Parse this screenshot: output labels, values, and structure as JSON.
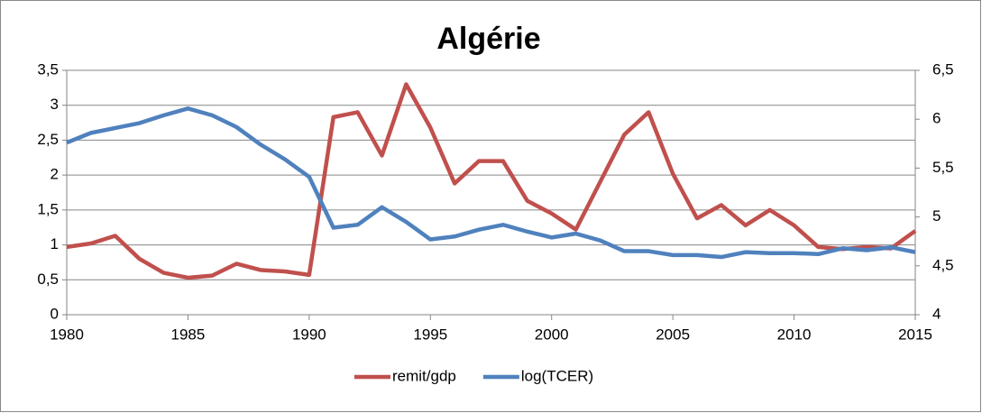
{
  "chart_data": {
    "type": "line",
    "title": "Algérie",
    "x": [
      1980,
      1981,
      1982,
      1983,
      1984,
      1985,
      1986,
      1987,
      1988,
      1989,
      1990,
      1991,
      1992,
      1993,
      1994,
      1995,
      1996,
      1997,
      1998,
      1999,
      2000,
      2001,
      2002,
      2003,
      2004,
      2005,
      2006,
      2007,
      2008,
      2009,
      2010,
      2011,
      2012,
      2013,
      2014,
      2015
    ],
    "series": [
      {
        "name": "remit/gdp",
        "color": "#c0504d",
        "values": [
          0.97,
          1.02,
          1.13,
          0.8,
          0.6,
          0.53,
          0.56,
          0.73,
          0.64,
          0.62,
          0.57,
          2.83,
          2.9,
          2.28,
          3.3,
          2.68,
          1.88,
          2.2,
          2.2,
          1.63,
          1.45,
          1.22,
          1.9,
          2.58,
          2.9,
          2.02,
          1.38,
          1.57,
          1.28,
          1.5,
          1.28,
          0.97,
          0.94,
          0.97,
          0.95,
          1.2
        ]
      },
      {
        "name": "log(TCER)",
        "color": "#4f81bd",
        "axis": "y2",
        "values": [
          5.76,
          5.86,
          5.91,
          5.96,
          6.04,
          6.11,
          6.04,
          5.92,
          5.74,
          5.59,
          5.41,
          4.89,
          4.92,
          5.1,
          4.95,
          4.77,
          4.8,
          4.87,
          4.92,
          4.85,
          4.79,
          4.83,
          4.76,
          4.65,
          4.65,
          4.61,
          4.61,
          4.59,
          4.64,
          4.63,
          4.63,
          4.62,
          4.68,
          4.66,
          4.69,
          4.64
        ]
      }
    ],
    "xlim": [
      1980,
      2015
    ],
    "xticks": [
      1980,
      1985,
      1990,
      1995,
      2000,
      2005,
      2010,
      2015
    ],
    "ylim": [
      0,
      3.5
    ],
    "yticks": [
      0,
      {
        "value": 0.5,
        "label": "0,5"
      },
      1,
      {
        "value": 1.5,
        "label": "1,5"
      },
      2,
      {
        "value": 2.5,
        "label": "2,5"
      },
      3,
      {
        "value": 3.5,
        "label": "3,5"
      }
    ],
    "y2lim": [
      4,
      6.5
    ],
    "y2ticks": [
      4,
      {
        "value": 4.5,
        "label": "4,5"
      },
      5,
      {
        "value": 5.5,
        "label": "5,5"
      },
      6,
      {
        "value": 6.5,
        "label": "6,5"
      }
    ],
    "grid": true,
    "legend": "bottom"
  }
}
